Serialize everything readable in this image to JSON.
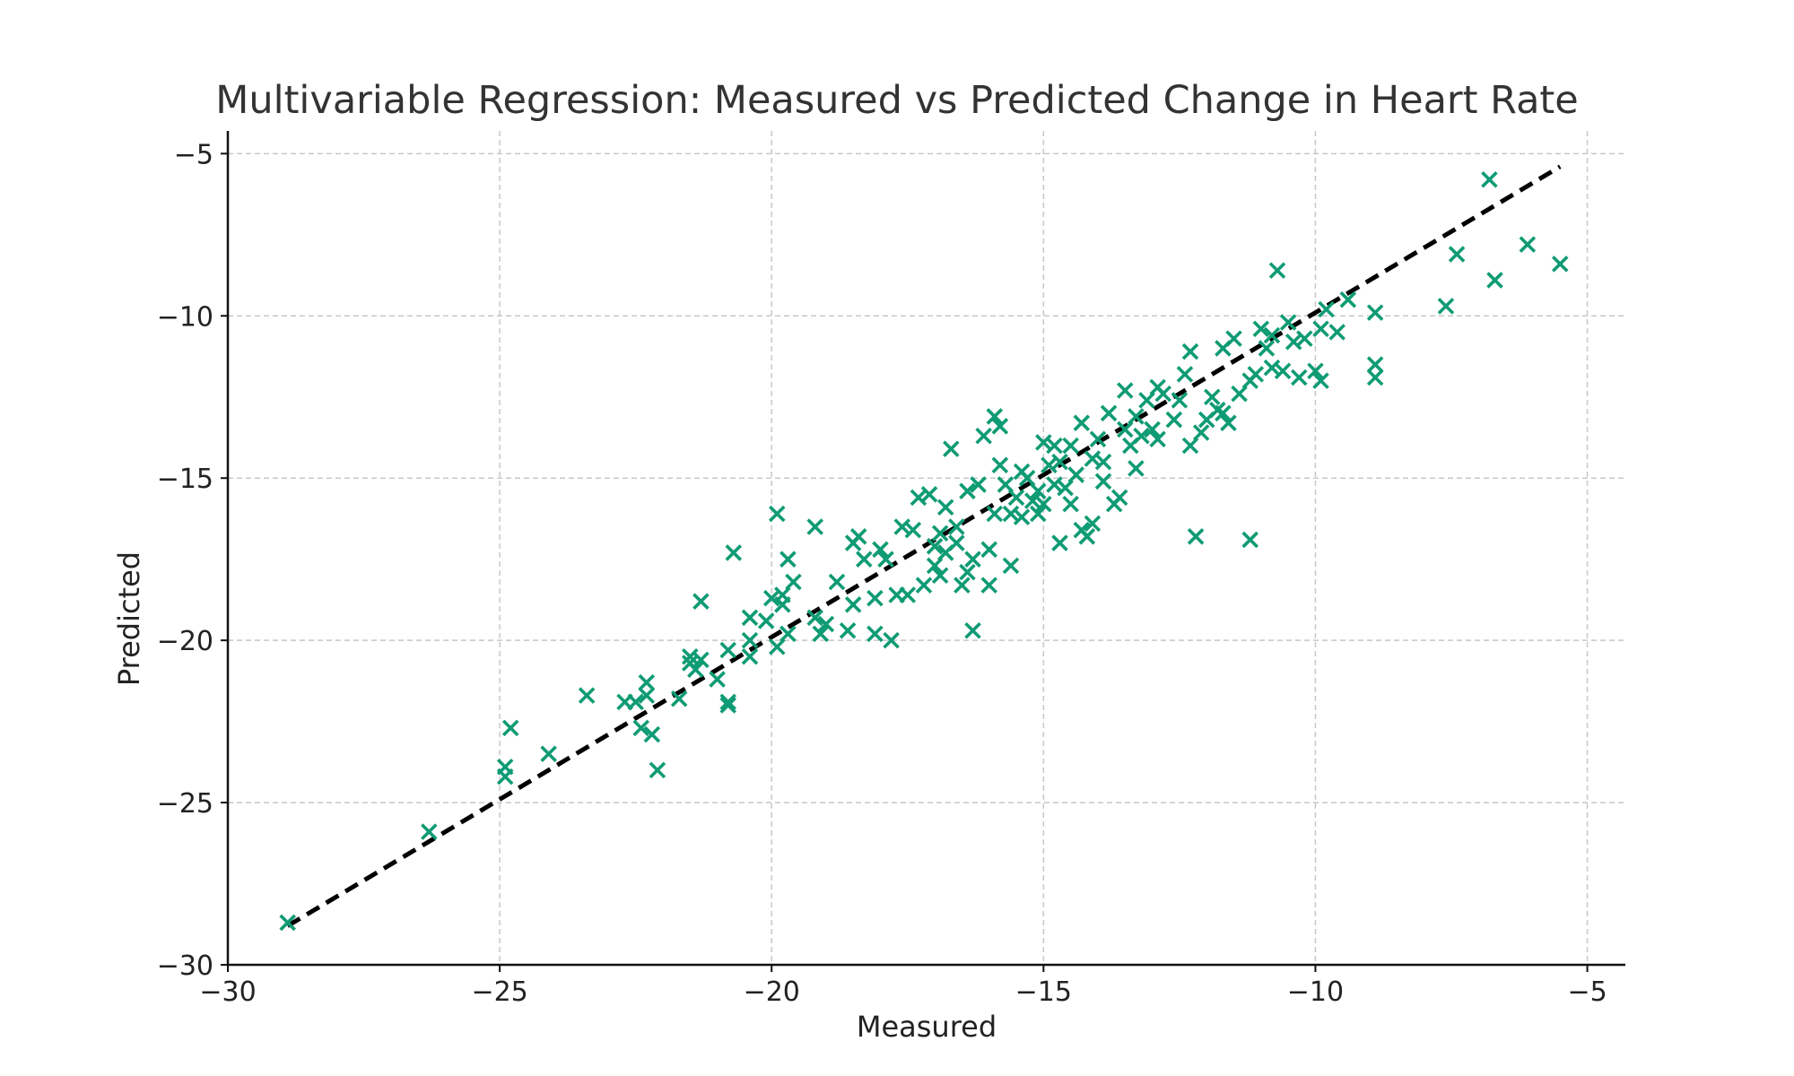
{
  "chart_data": {
    "type": "scatter",
    "title": "Multivariable Regression: Measured vs Predicted Change in Heart Rate",
    "xlabel": "Measured",
    "ylabel": "Predicted",
    "xlim": [
      -30,
      -4.3
    ],
    "ylim": [
      -30,
      -4.3
    ],
    "xticks": [
      -30,
      -25,
      -20,
      -15,
      -10,
      -5
    ],
    "yticks": [
      -30,
      -25,
      -20,
      -15,
      -10,
      -5
    ],
    "xtick_labels": [
      "−30",
      "−25",
      "−20",
      "−15",
      "−10",
      "−5"
    ],
    "ytick_labels": [
      "−30",
      "−25",
      "−20",
      "−15",
      "−10",
      "−5"
    ],
    "grid": true,
    "marker": "x",
    "marker_color": "#0f9b74",
    "reference_line": {
      "x": [
        -28.9,
        -5.5
      ],
      "y": [
        -28.8,
        -5.4
      ],
      "style": "dashed",
      "color": "#000000"
    },
    "series": [
      {
        "points": [
          [
            -28.9,
            -28.7
          ],
          [
            -26.3,
            -25.9
          ],
          [
            -24.8,
            -22.7
          ],
          [
            -24.9,
            -23.9
          ],
          [
            -24.9,
            -24.2
          ],
          [
            -24.1,
            -23.5
          ],
          [
            -23.4,
            -21.7
          ],
          [
            -22.7,
            -21.9
          ],
          [
            -22.5,
            -21.9
          ],
          [
            -22.4,
            -22.7
          ],
          [
            -22.3,
            -21.7
          ],
          [
            -22.3,
            -21.3
          ],
          [
            -22.2,
            -22.9
          ],
          [
            -22.1,
            -24.0
          ],
          [
            -21.7,
            -21.8
          ],
          [
            -21.5,
            -20.5
          ],
          [
            -21.5,
            -20.7
          ],
          [
            -21.4,
            -20.9
          ],
          [
            -21.3,
            -20.6
          ],
          [
            -21.3,
            -18.8
          ],
          [
            -21.0,
            -21.2
          ],
          [
            -20.8,
            -20.3
          ],
          [
            -20.8,
            -21.9
          ],
          [
            -20.8,
            -22.0
          ],
          [
            -20.7,
            -17.3
          ],
          [
            -20.4,
            -19.3
          ],
          [
            -20.4,
            -20.5
          ],
          [
            -20.4,
            -20.0
          ],
          [
            -20.1,
            -19.4
          ],
          [
            -20.0,
            -18.7
          ],
          [
            -19.9,
            -16.1
          ],
          [
            -19.9,
            -20.2
          ],
          [
            -19.8,
            -18.6
          ],
          [
            -19.8,
            -18.9
          ],
          [
            -19.7,
            -19.8
          ],
          [
            -19.7,
            -17.5
          ],
          [
            -19.6,
            -18.2
          ],
          [
            -19.2,
            -16.5
          ],
          [
            -19.2,
            -19.3
          ],
          [
            -19.1,
            -19.8
          ],
          [
            -19.0,
            -19.5
          ],
          [
            -18.8,
            -18.2
          ],
          [
            -18.6,
            -19.7
          ],
          [
            -18.5,
            -18.9
          ],
          [
            -18.5,
            -17.0
          ],
          [
            -18.4,
            -16.8
          ],
          [
            -18.3,
            -17.5
          ],
          [
            -18.1,
            -18.7
          ],
          [
            -18.1,
            -19.8
          ],
          [
            -18.0,
            -17.2
          ],
          [
            -17.9,
            -17.5
          ],
          [
            -17.8,
            -20.0
          ],
          [
            -17.7,
            -18.6
          ],
          [
            -17.6,
            -16.5
          ],
          [
            -17.5,
            -18.6
          ],
          [
            -17.4,
            -16.6
          ],
          [
            -17.3,
            -15.6
          ],
          [
            -17.2,
            -18.3
          ],
          [
            -17.1,
            -15.5
          ],
          [
            -17.0,
            -17.1
          ],
          [
            -17.0,
            -17.7
          ],
          [
            -16.9,
            -18.0
          ],
          [
            -16.9,
            -16.7
          ],
          [
            -16.8,
            -17.3
          ],
          [
            -16.8,
            -15.9
          ],
          [
            -16.7,
            -14.1
          ],
          [
            -16.6,
            -17.0
          ],
          [
            -16.6,
            -16.5
          ],
          [
            -16.5,
            -18.3
          ],
          [
            -16.4,
            -17.9
          ],
          [
            -16.4,
            -15.4
          ],
          [
            -16.3,
            -17.5
          ],
          [
            -16.3,
            -19.7
          ],
          [
            -16.2,
            -15.2
          ],
          [
            -16.1,
            -13.7
          ],
          [
            -16.0,
            -17.2
          ],
          [
            -16.0,
            -18.3
          ],
          [
            -15.9,
            -16.1
          ],
          [
            -15.9,
            -13.1
          ],
          [
            -15.8,
            -14.6
          ],
          [
            -15.8,
            -13.4
          ],
          [
            -15.7,
            -15.2
          ],
          [
            -15.6,
            -17.7
          ],
          [
            -15.6,
            -16.1
          ],
          [
            -15.5,
            -15.6
          ],
          [
            -15.4,
            -16.2
          ],
          [
            -15.4,
            -14.8
          ],
          [
            -15.3,
            -15.0
          ],
          [
            -15.2,
            -15.7
          ],
          [
            -15.1,
            -16.1
          ],
          [
            -15.1,
            -15.4
          ],
          [
            -15.0,
            -13.9
          ],
          [
            -15.0,
            -15.8
          ],
          [
            -14.9,
            -14.6
          ],
          [
            -14.8,
            -15.2
          ],
          [
            -14.8,
            -14.0
          ],
          [
            -14.7,
            -17.0
          ],
          [
            -14.7,
            -14.5
          ],
          [
            -14.6,
            -15.3
          ],
          [
            -14.5,
            -14.0
          ],
          [
            -14.5,
            -15.8
          ],
          [
            -14.4,
            -14.9
          ],
          [
            -14.3,
            -16.6
          ],
          [
            -14.3,
            -13.3
          ],
          [
            -14.2,
            -16.8
          ],
          [
            -14.1,
            -14.4
          ],
          [
            -14.1,
            -16.4
          ],
          [
            -14.0,
            -13.8
          ],
          [
            -13.9,
            -15.1
          ],
          [
            -13.9,
            -14.5
          ],
          [
            -13.8,
            -13.0
          ],
          [
            -13.7,
            -15.8
          ],
          [
            -13.6,
            -15.6
          ],
          [
            -13.5,
            -13.5
          ],
          [
            -13.5,
            -12.3
          ],
          [
            -13.4,
            -14.0
          ],
          [
            -13.3,
            -14.7
          ],
          [
            -13.3,
            -13.1
          ],
          [
            -13.2,
            -13.7
          ],
          [
            -13.1,
            -12.6
          ],
          [
            -13.0,
            -13.5
          ],
          [
            -12.9,
            -12.2
          ],
          [
            -12.9,
            -13.8
          ],
          [
            -12.8,
            -12.4
          ],
          [
            -12.6,
            -13.2
          ],
          [
            -12.5,
            -12.6
          ],
          [
            -12.4,
            -11.8
          ],
          [
            -12.3,
            -14.0
          ],
          [
            -12.3,
            -11.1
          ],
          [
            -12.2,
            -16.8
          ],
          [
            -12.1,
            -13.6
          ],
          [
            -12.0,
            -13.2
          ],
          [
            -11.9,
            -12.5
          ],
          [
            -11.8,
            -12.9
          ],
          [
            -11.7,
            -13.0
          ],
          [
            -11.7,
            -11.0
          ],
          [
            -11.6,
            -13.3
          ],
          [
            -11.5,
            -10.7
          ],
          [
            -11.4,
            -12.4
          ],
          [
            -11.2,
            -12.0
          ],
          [
            -11.2,
            -16.9
          ],
          [
            -11.1,
            -11.8
          ],
          [
            -11.0,
            -10.4
          ],
          [
            -10.9,
            -11.0
          ],
          [
            -10.8,
            -10.6
          ],
          [
            -10.8,
            -11.6
          ],
          [
            -10.7,
            -8.6
          ],
          [
            -10.6,
            -11.7
          ],
          [
            -10.5,
            -10.2
          ],
          [
            -10.4,
            -10.8
          ],
          [
            -10.3,
            -11.9
          ],
          [
            -10.2,
            -10.7
          ],
          [
            -10.0,
            -11.7
          ],
          [
            -9.9,
            -12.0
          ],
          [
            -9.9,
            -10.4
          ],
          [
            -9.8,
            -9.8
          ],
          [
            -9.6,
            -10.5
          ],
          [
            -9.4,
            -9.5
          ],
          [
            -8.9,
            -9.9
          ],
          [
            -8.9,
            -11.5
          ],
          [
            -8.9,
            -11.9
          ],
          [
            -7.6,
            -9.7
          ],
          [
            -7.4,
            -8.1
          ],
          [
            -6.8,
            -5.8
          ],
          [
            -6.7,
            -8.9
          ],
          [
            -6.1,
            -7.8
          ],
          [
            -5.5,
            -8.4
          ]
        ]
      }
    ]
  }
}
